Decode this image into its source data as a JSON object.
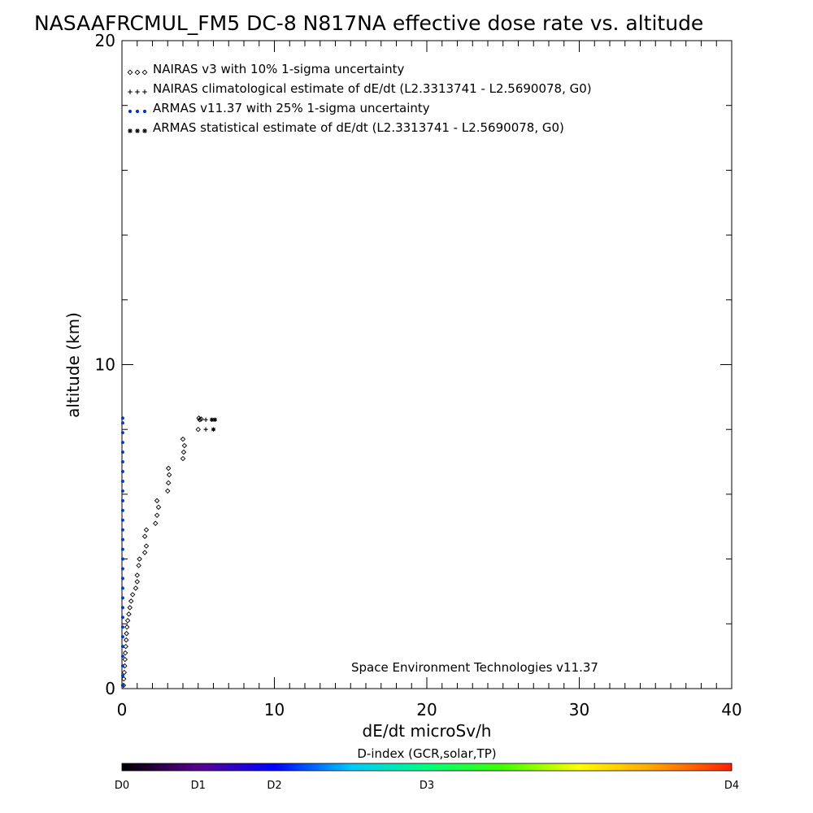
{
  "chart_data": {
    "type": "scatter",
    "title": "NASAAFRCMUL_FM5 DC-8   N817NA effective dose rate vs. altitude",
    "xlabel": "dE/dt microSv/h",
    "ylabel": "altitude (km)",
    "xlim": [
      0,
      40
    ],
    "ylim": [
      0,
      20
    ],
    "x_ticks": [
      "0",
      "10",
      "20",
      "30",
      "40"
    ],
    "y_ticks": [
      "0",
      "10",
      "20"
    ],
    "grid": false,
    "legend_position": "top-left",
    "series": [
      {
        "name": "NAIRAS v3 with 10% 1-sigma uncertainty",
        "marker": "diamond",
        "color": "#000000",
        "points": [
          [
            0.1,
            0.1
          ],
          [
            0.12,
            0.3
          ],
          [
            0.15,
            0.5
          ],
          [
            0.18,
            0.7
          ],
          [
            0.2,
            0.9
          ],
          [
            0.22,
            1.1
          ],
          [
            0.25,
            1.3
          ],
          [
            0.28,
            1.5
          ],
          [
            0.3,
            1.7
          ],
          [
            0.33,
            1.9
          ],
          [
            0.38,
            2.1
          ],
          [
            0.45,
            2.3
          ],
          [
            0.52,
            2.5
          ],
          [
            0.6,
            2.7
          ],
          [
            0.7,
            2.9
          ],
          [
            0.9,
            3.1
          ],
          [
            1.0,
            3.3
          ],
          [
            1.0,
            3.5
          ],
          [
            1.1,
            3.8
          ],
          [
            1.15,
            4.0
          ],
          [
            1.5,
            4.2
          ],
          [
            1.6,
            4.4
          ],
          [
            1.5,
            4.7
          ],
          [
            1.6,
            4.9
          ],
          [
            2.2,
            5.1
          ],
          [
            2.3,
            5.35
          ],
          [
            2.4,
            5.6
          ],
          [
            2.3,
            5.8
          ],
          [
            3.0,
            6.1
          ],
          [
            3.05,
            6.35
          ],
          [
            3.1,
            6.6
          ],
          [
            3.05,
            6.8
          ],
          [
            4.0,
            7.1
          ],
          [
            4.05,
            7.3
          ],
          [
            4.1,
            7.5
          ],
          [
            4.0,
            7.7
          ],
          [
            5.0,
            8.0
          ],
          [
            5.1,
            8.3
          ],
          [
            5.05,
            8.35
          ],
          [
            5.2,
            8.32
          ]
        ]
      },
      {
        "name": "NAIRAS climatological estimate of dE/dt (L2.3313741 - L2.5690078, G0)",
        "marker": "plus",
        "color": "#000000",
        "points": [
          [
            5.5,
            8.3
          ],
          [
            5.5,
            8.0
          ]
        ]
      },
      {
        "name": "ARMAS v11.37 with 25% 1-sigma uncertainty",
        "marker": "dot",
        "color": "#0033cc",
        "points": [
          [
            0.05,
            0.1
          ],
          [
            0.05,
            0.4
          ],
          [
            0.05,
            0.7
          ],
          [
            0.05,
            1.0
          ],
          [
            0.05,
            1.3
          ],
          [
            0.05,
            1.6
          ],
          [
            0.05,
            1.9
          ],
          [
            0.05,
            2.2
          ],
          [
            0.05,
            2.5
          ],
          [
            0.05,
            2.8
          ],
          [
            0.05,
            3.1
          ],
          [
            0.05,
            3.4
          ],
          [
            0.05,
            3.7
          ],
          [
            0.05,
            4.0
          ],
          [
            0.05,
            4.3
          ],
          [
            0.05,
            4.6
          ],
          [
            0.05,
            4.9
          ],
          [
            0.05,
            5.2
          ],
          [
            0.05,
            5.5
          ],
          [
            0.05,
            5.8
          ],
          [
            0.05,
            6.1
          ],
          [
            0.05,
            6.4
          ],
          [
            0.05,
            6.7
          ],
          [
            0.05,
            7.0
          ],
          [
            0.05,
            7.3
          ],
          [
            0.05,
            7.6
          ],
          [
            0.05,
            7.9
          ],
          [
            0.05,
            8.2
          ],
          [
            0.05,
            8.35
          ]
        ]
      },
      {
        "name": "ARMAS statistical estimate of dE/dt (L2.3313741 - L2.5690078, G0)",
        "marker": "asterisk",
        "color": "#000000",
        "points": [
          [
            5.9,
            8.3
          ],
          [
            6.1,
            8.3
          ],
          [
            6.0,
            8.0
          ]
        ]
      }
    ],
    "annotation": "Space Environment Technologies v11.37",
    "colorbar": {
      "title": "D-index (GCR,solar,TP)",
      "labels": [
        "D0",
        "D1",
        "D2",
        "D3",
        "D4"
      ],
      "label_values": [
        0,
        1,
        2,
        3,
        4
      ],
      "scale_max": 4,
      "label_positions": [
        0,
        0.125,
        0.25,
        0.5,
        1.0
      ],
      "stops": [
        "#000000",
        "#5a0090",
        "#0000ff",
        "#00c8ff",
        "#00ff80",
        "#40ff00",
        "#ffff00",
        "#ffa000",
        "#ff2000"
      ]
    }
  }
}
